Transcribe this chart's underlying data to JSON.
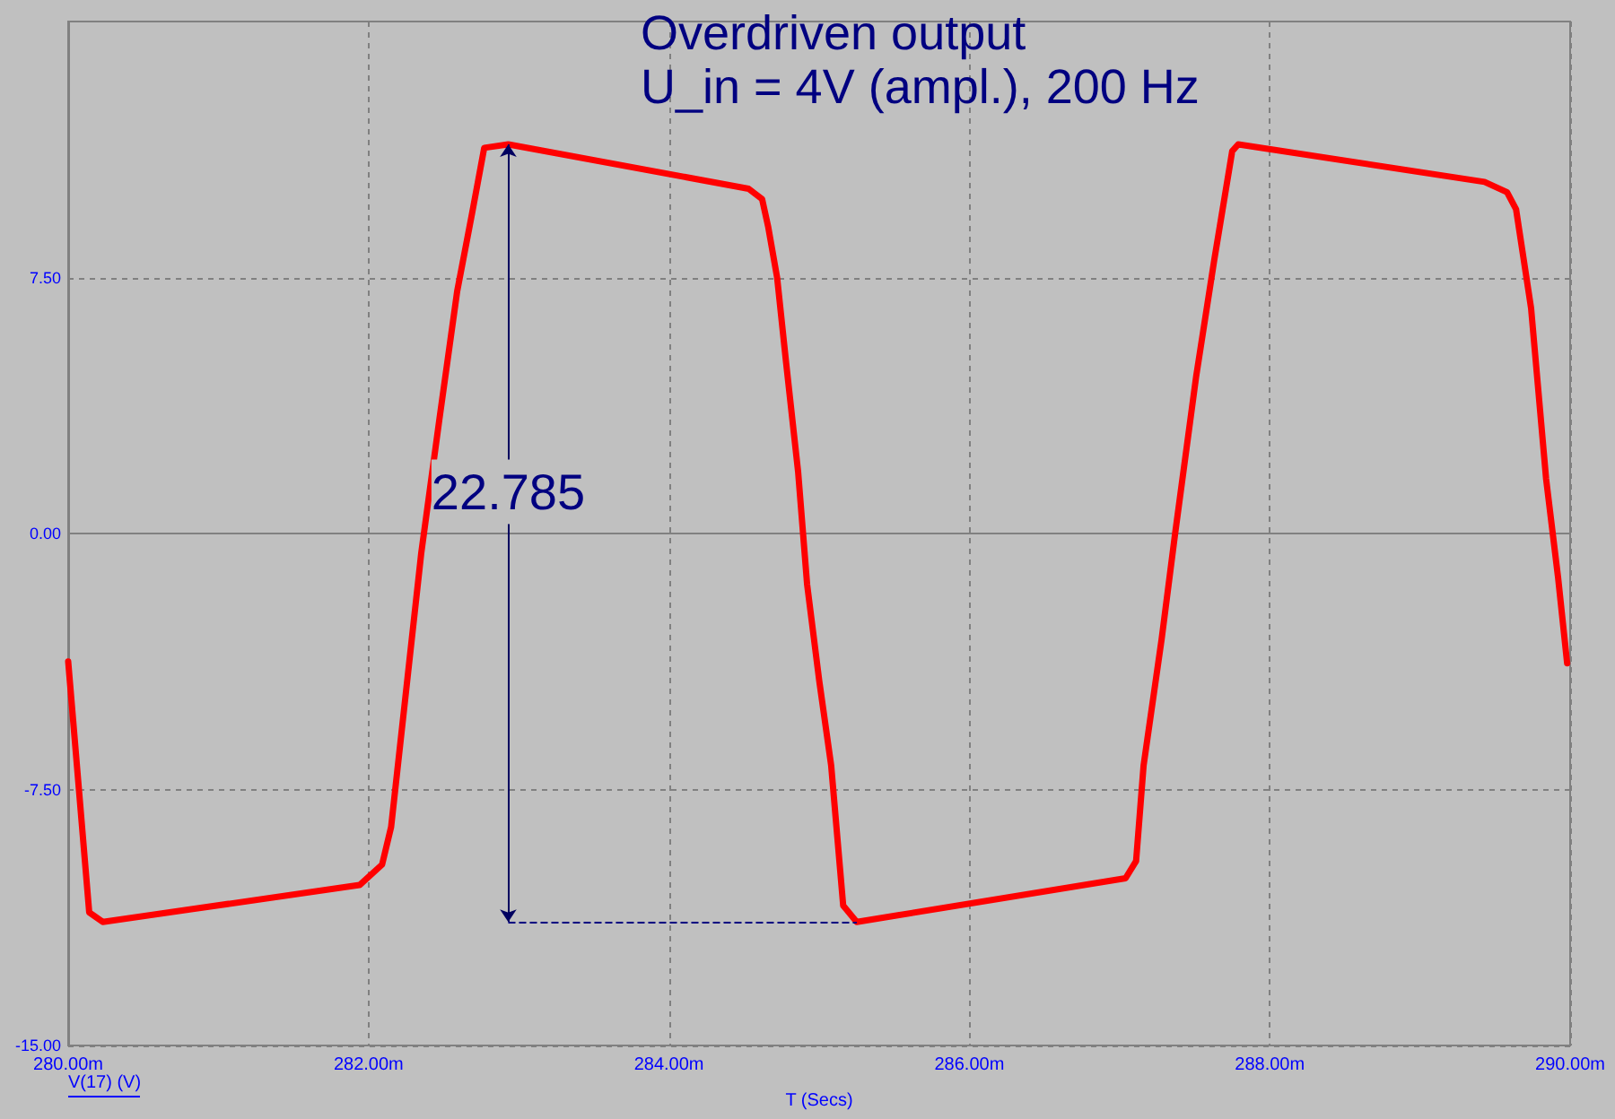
{
  "chart_data": {
    "type": "line",
    "title": "Overdriven output",
    "subtitle": "U_in = 4V (ampl.), 200 Hz",
    "xlabel": "T (Secs)",
    "annotations": [
      "22.785",
      "V(17) (V)"
    ],
    "x": [
      280.0,
      280.14,
      280.23,
      281.94,
      282.09,
      282.15,
      282.26,
      282.35,
      282.47,
      282.59,
      282.69,
      282.77,
      282.93,
      284.53,
      284.62,
      284.66,
      284.72,
      284.78,
      284.86,
      284.92,
      285.0,
      285.08,
      285.16,
      285.25,
      287.04,
      287.11,
      287.16,
      287.28,
      287.37,
      287.51,
      287.63,
      287.75,
      287.79,
      289.43,
      289.58,
      289.64,
      289.74,
      289.84,
      289.92,
      289.98
    ],
    "series": [
      {
        "color": "#ff0000",
        "values": [
          -3.75,
          -11.1,
          -11.38,
          -10.3,
          -9.7,
          -8.6,
          -4.2,
          -0.6,
          3.3,
          7.1,
          9.4,
          11.3,
          11.4,
          10.1,
          9.8,
          9.0,
          7.5,
          5.0,
          1.8,
          -1.5,
          -4.3,
          -6.8,
          -10.9,
          -11.38,
          -10.1,
          -9.6,
          -6.8,
          -3.1,
          0.0,
          4.6,
          8.0,
          11.2,
          11.4,
          10.3,
          10.0,
          9.5,
          6.6,
          1.6,
          -1.3,
          -3.8
        ]
      }
    ],
    "xlim": [
      280,
      290
    ],
    "xticks": [
      {
        "value": 280,
        "label": "280.00m"
      },
      {
        "value": 282,
        "label": "282.00m"
      },
      {
        "value": 284,
        "label": "284.00m"
      },
      {
        "value": 286,
        "label": "286.00m"
      },
      {
        "value": 288,
        "label": "288.00m"
      },
      {
        "value": 290,
        "label": "290.00m"
      }
    ],
    "ylim": [
      -15,
      15
    ],
    "yticks": [
      {
        "value": -15,
        "label": "-15.00"
      },
      {
        "value": -7.5,
        "label": "-7.50"
      },
      {
        "value": 0,
        "label": "0.00"
      },
      {
        "value": 7.5,
        "label": "7.50"
      }
    ],
    "grid": true,
    "marker": "none",
    "line_style": "solid"
  }
}
